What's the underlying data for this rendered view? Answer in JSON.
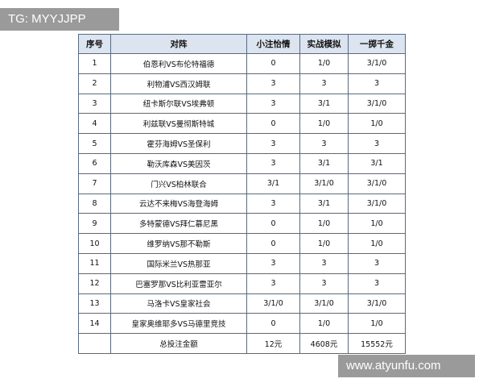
{
  "watermarks": {
    "top_left": "TG: MYYJJPP",
    "bottom_right": "www.atyunfu.com"
  },
  "table": {
    "header": [
      "序号",
      "对阵",
      "小注怡情",
      "实战模拟",
      "一掷千金"
    ],
    "rows": [
      [
        "1",
        "伯恩利VS布伦特福德",
        "0",
        "1/0",
        "3/1/0"
      ],
      [
        "2",
        "利物浦VS西汉姆联",
        "3",
        "3",
        "3"
      ],
      [
        "3",
        "纽卡斯尔联VS埃弗顿",
        "3",
        "3/1",
        "3/1/0"
      ],
      [
        "4",
        "利兹联VS曼彻斯特城",
        "0",
        "1/0",
        "1/0"
      ],
      [
        "5",
        "霍芬海姆VS圣保利",
        "3",
        "3",
        "3"
      ],
      [
        "6",
        "勒沃库森VS美因茨",
        "3",
        "3/1",
        "3/1"
      ],
      [
        "7",
        "门兴VS柏林联合",
        "3/1",
        "3/1/0",
        "3/1/0"
      ],
      [
        "8",
        "云达不来梅VS海登海姆",
        "3",
        "3/1",
        "3/1/0"
      ],
      [
        "9",
        "多特蒙德VS拜仁慕尼黑",
        "0",
        "1/0",
        "1/0"
      ],
      [
        "10",
        "维罗纳VS那不勒斯",
        "0",
        "1/0",
        "1/0"
      ],
      [
        "11",
        "国际米兰VS热那亚",
        "3",
        "3",
        "3"
      ],
      [
        "12",
        "巴塞罗那VS比利亚雷亚尔",
        "3",
        "3",
        "3"
      ],
      [
        "13",
        "马洛卡VS皇家社会",
        "3/1/0",
        "3/1/0",
        "3/1/0"
      ],
      [
        "14",
        "皇家奥维耶多VS马德里竞技",
        "0",
        "1/0",
        "1/0"
      ]
    ],
    "total": {
      "label": "总投注金额",
      "values": [
        "12元",
        "4608元",
        "15552元"
      ]
    }
  }
}
